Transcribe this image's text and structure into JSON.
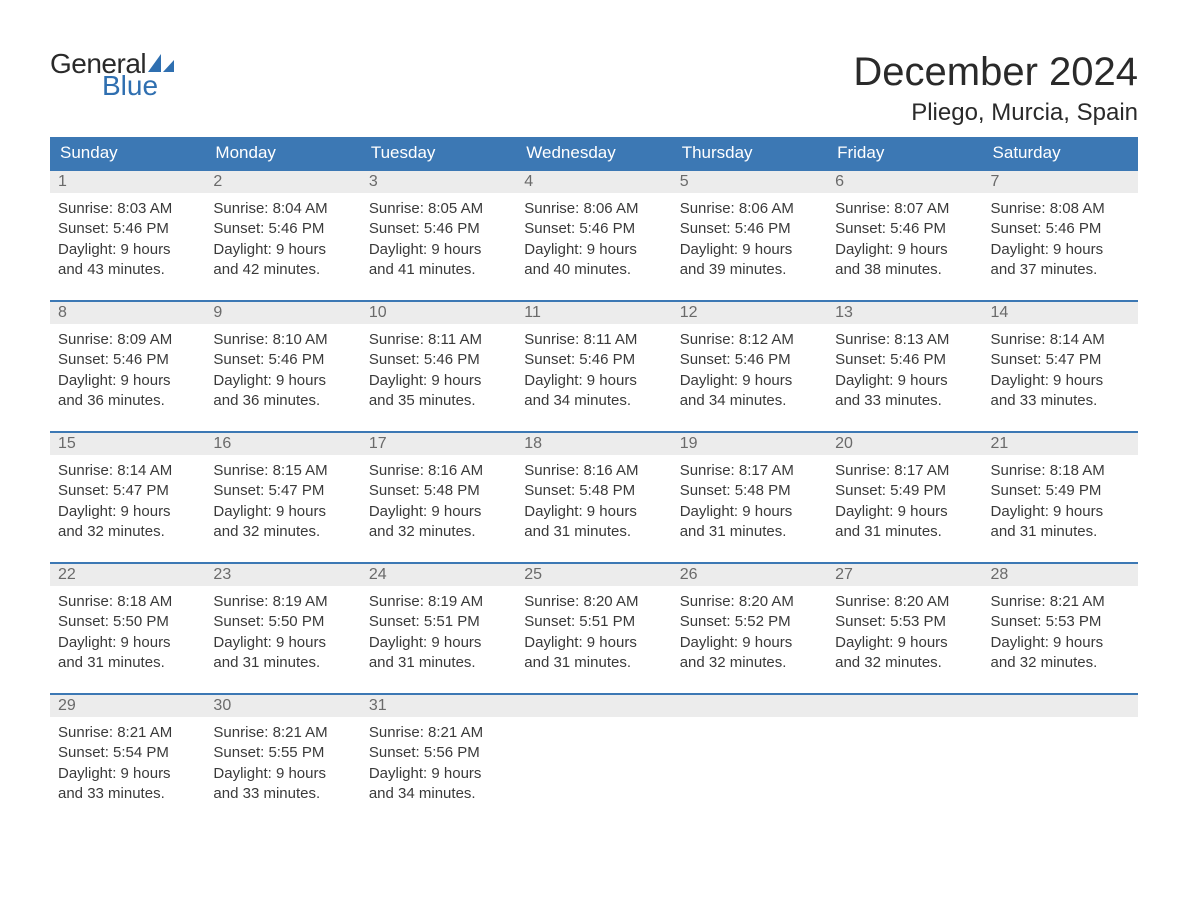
{
  "brand": {
    "general": "General",
    "blue": "Blue",
    "logo_color": "#2f6fb0"
  },
  "header": {
    "month_title": "December 2024",
    "location": "Pliego, Murcia, Spain",
    "title_fontsize": 40,
    "location_fontsize": 24
  },
  "calendar": {
    "header_bg": "#3c78b4",
    "header_text_color": "#ffffff",
    "divider_color": "#3c78b4",
    "daynum_bg": "#ececec",
    "daynum_color": "#6a6a6a",
    "body_text_color": "#3a3a3a",
    "days_of_week": [
      "Sunday",
      "Monday",
      "Tuesday",
      "Wednesday",
      "Thursday",
      "Friday",
      "Saturday"
    ],
    "labels": {
      "sunrise_prefix": "Sunrise: ",
      "sunset_prefix": "Sunset: ",
      "daylight_prefix": "Daylight: ",
      "hours_word": " hours",
      "and_word": "and ",
      "minutes_word": " minutes."
    },
    "weeks": [
      [
        {
          "n": 1,
          "sunrise": "8:03 AM",
          "sunset": "5:46 PM",
          "dl_h": 9,
          "dl_m": 43
        },
        {
          "n": 2,
          "sunrise": "8:04 AM",
          "sunset": "5:46 PM",
          "dl_h": 9,
          "dl_m": 42
        },
        {
          "n": 3,
          "sunrise": "8:05 AM",
          "sunset": "5:46 PM",
          "dl_h": 9,
          "dl_m": 41
        },
        {
          "n": 4,
          "sunrise": "8:06 AM",
          "sunset": "5:46 PM",
          "dl_h": 9,
          "dl_m": 40
        },
        {
          "n": 5,
          "sunrise": "8:06 AM",
          "sunset": "5:46 PM",
          "dl_h": 9,
          "dl_m": 39
        },
        {
          "n": 6,
          "sunrise": "8:07 AM",
          "sunset": "5:46 PM",
          "dl_h": 9,
          "dl_m": 38
        },
        {
          "n": 7,
          "sunrise": "8:08 AM",
          "sunset": "5:46 PM",
          "dl_h": 9,
          "dl_m": 37
        }
      ],
      [
        {
          "n": 8,
          "sunrise": "8:09 AM",
          "sunset": "5:46 PM",
          "dl_h": 9,
          "dl_m": 36
        },
        {
          "n": 9,
          "sunrise": "8:10 AM",
          "sunset": "5:46 PM",
          "dl_h": 9,
          "dl_m": 36
        },
        {
          "n": 10,
          "sunrise": "8:11 AM",
          "sunset": "5:46 PM",
          "dl_h": 9,
          "dl_m": 35
        },
        {
          "n": 11,
          "sunrise": "8:11 AM",
          "sunset": "5:46 PM",
          "dl_h": 9,
          "dl_m": 34
        },
        {
          "n": 12,
          "sunrise": "8:12 AM",
          "sunset": "5:46 PM",
          "dl_h": 9,
          "dl_m": 34
        },
        {
          "n": 13,
          "sunrise": "8:13 AM",
          "sunset": "5:46 PM",
          "dl_h": 9,
          "dl_m": 33
        },
        {
          "n": 14,
          "sunrise": "8:14 AM",
          "sunset": "5:47 PM",
          "dl_h": 9,
          "dl_m": 33
        }
      ],
      [
        {
          "n": 15,
          "sunrise": "8:14 AM",
          "sunset": "5:47 PM",
          "dl_h": 9,
          "dl_m": 32
        },
        {
          "n": 16,
          "sunrise": "8:15 AM",
          "sunset": "5:47 PM",
          "dl_h": 9,
          "dl_m": 32
        },
        {
          "n": 17,
          "sunrise": "8:16 AM",
          "sunset": "5:48 PM",
          "dl_h": 9,
          "dl_m": 32
        },
        {
          "n": 18,
          "sunrise": "8:16 AM",
          "sunset": "5:48 PM",
          "dl_h": 9,
          "dl_m": 31
        },
        {
          "n": 19,
          "sunrise": "8:17 AM",
          "sunset": "5:48 PM",
          "dl_h": 9,
          "dl_m": 31
        },
        {
          "n": 20,
          "sunrise": "8:17 AM",
          "sunset": "5:49 PM",
          "dl_h": 9,
          "dl_m": 31
        },
        {
          "n": 21,
          "sunrise": "8:18 AM",
          "sunset": "5:49 PM",
          "dl_h": 9,
          "dl_m": 31
        }
      ],
      [
        {
          "n": 22,
          "sunrise": "8:18 AM",
          "sunset": "5:50 PM",
          "dl_h": 9,
          "dl_m": 31
        },
        {
          "n": 23,
          "sunrise": "8:19 AM",
          "sunset": "5:50 PM",
          "dl_h": 9,
          "dl_m": 31
        },
        {
          "n": 24,
          "sunrise": "8:19 AM",
          "sunset": "5:51 PM",
          "dl_h": 9,
          "dl_m": 31
        },
        {
          "n": 25,
          "sunrise": "8:20 AM",
          "sunset": "5:51 PM",
          "dl_h": 9,
          "dl_m": 31
        },
        {
          "n": 26,
          "sunrise": "8:20 AM",
          "sunset": "5:52 PM",
          "dl_h": 9,
          "dl_m": 32
        },
        {
          "n": 27,
          "sunrise": "8:20 AM",
          "sunset": "5:53 PM",
          "dl_h": 9,
          "dl_m": 32
        },
        {
          "n": 28,
          "sunrise": "8:21 AM",
          "sunset": "5:53 PM",
          "dl_h": 9,
          "dl_m": 32
        }
      ],
      [
        {
          "n": 29,
          "sunrise": "8:21 AM",
          "sunset": "5:54 PM",
          "dl_h": 9,
          "dl_m": 33
        },
        {
          "n": 30,
          "sunrise": "8:21 AM",
          "sunset": "5:55 PM",
          "dl_h": 9,
          "dl_m": 33
        },
        {
          "n": 31,
          "sunrise": "8:21 AM",
          "sunset": "5:56 PM",
          "dl_h": 9,
          "dl_m": 34
        },
        null,
        null,
        null,
        null
      ]
    ]
  }
}
